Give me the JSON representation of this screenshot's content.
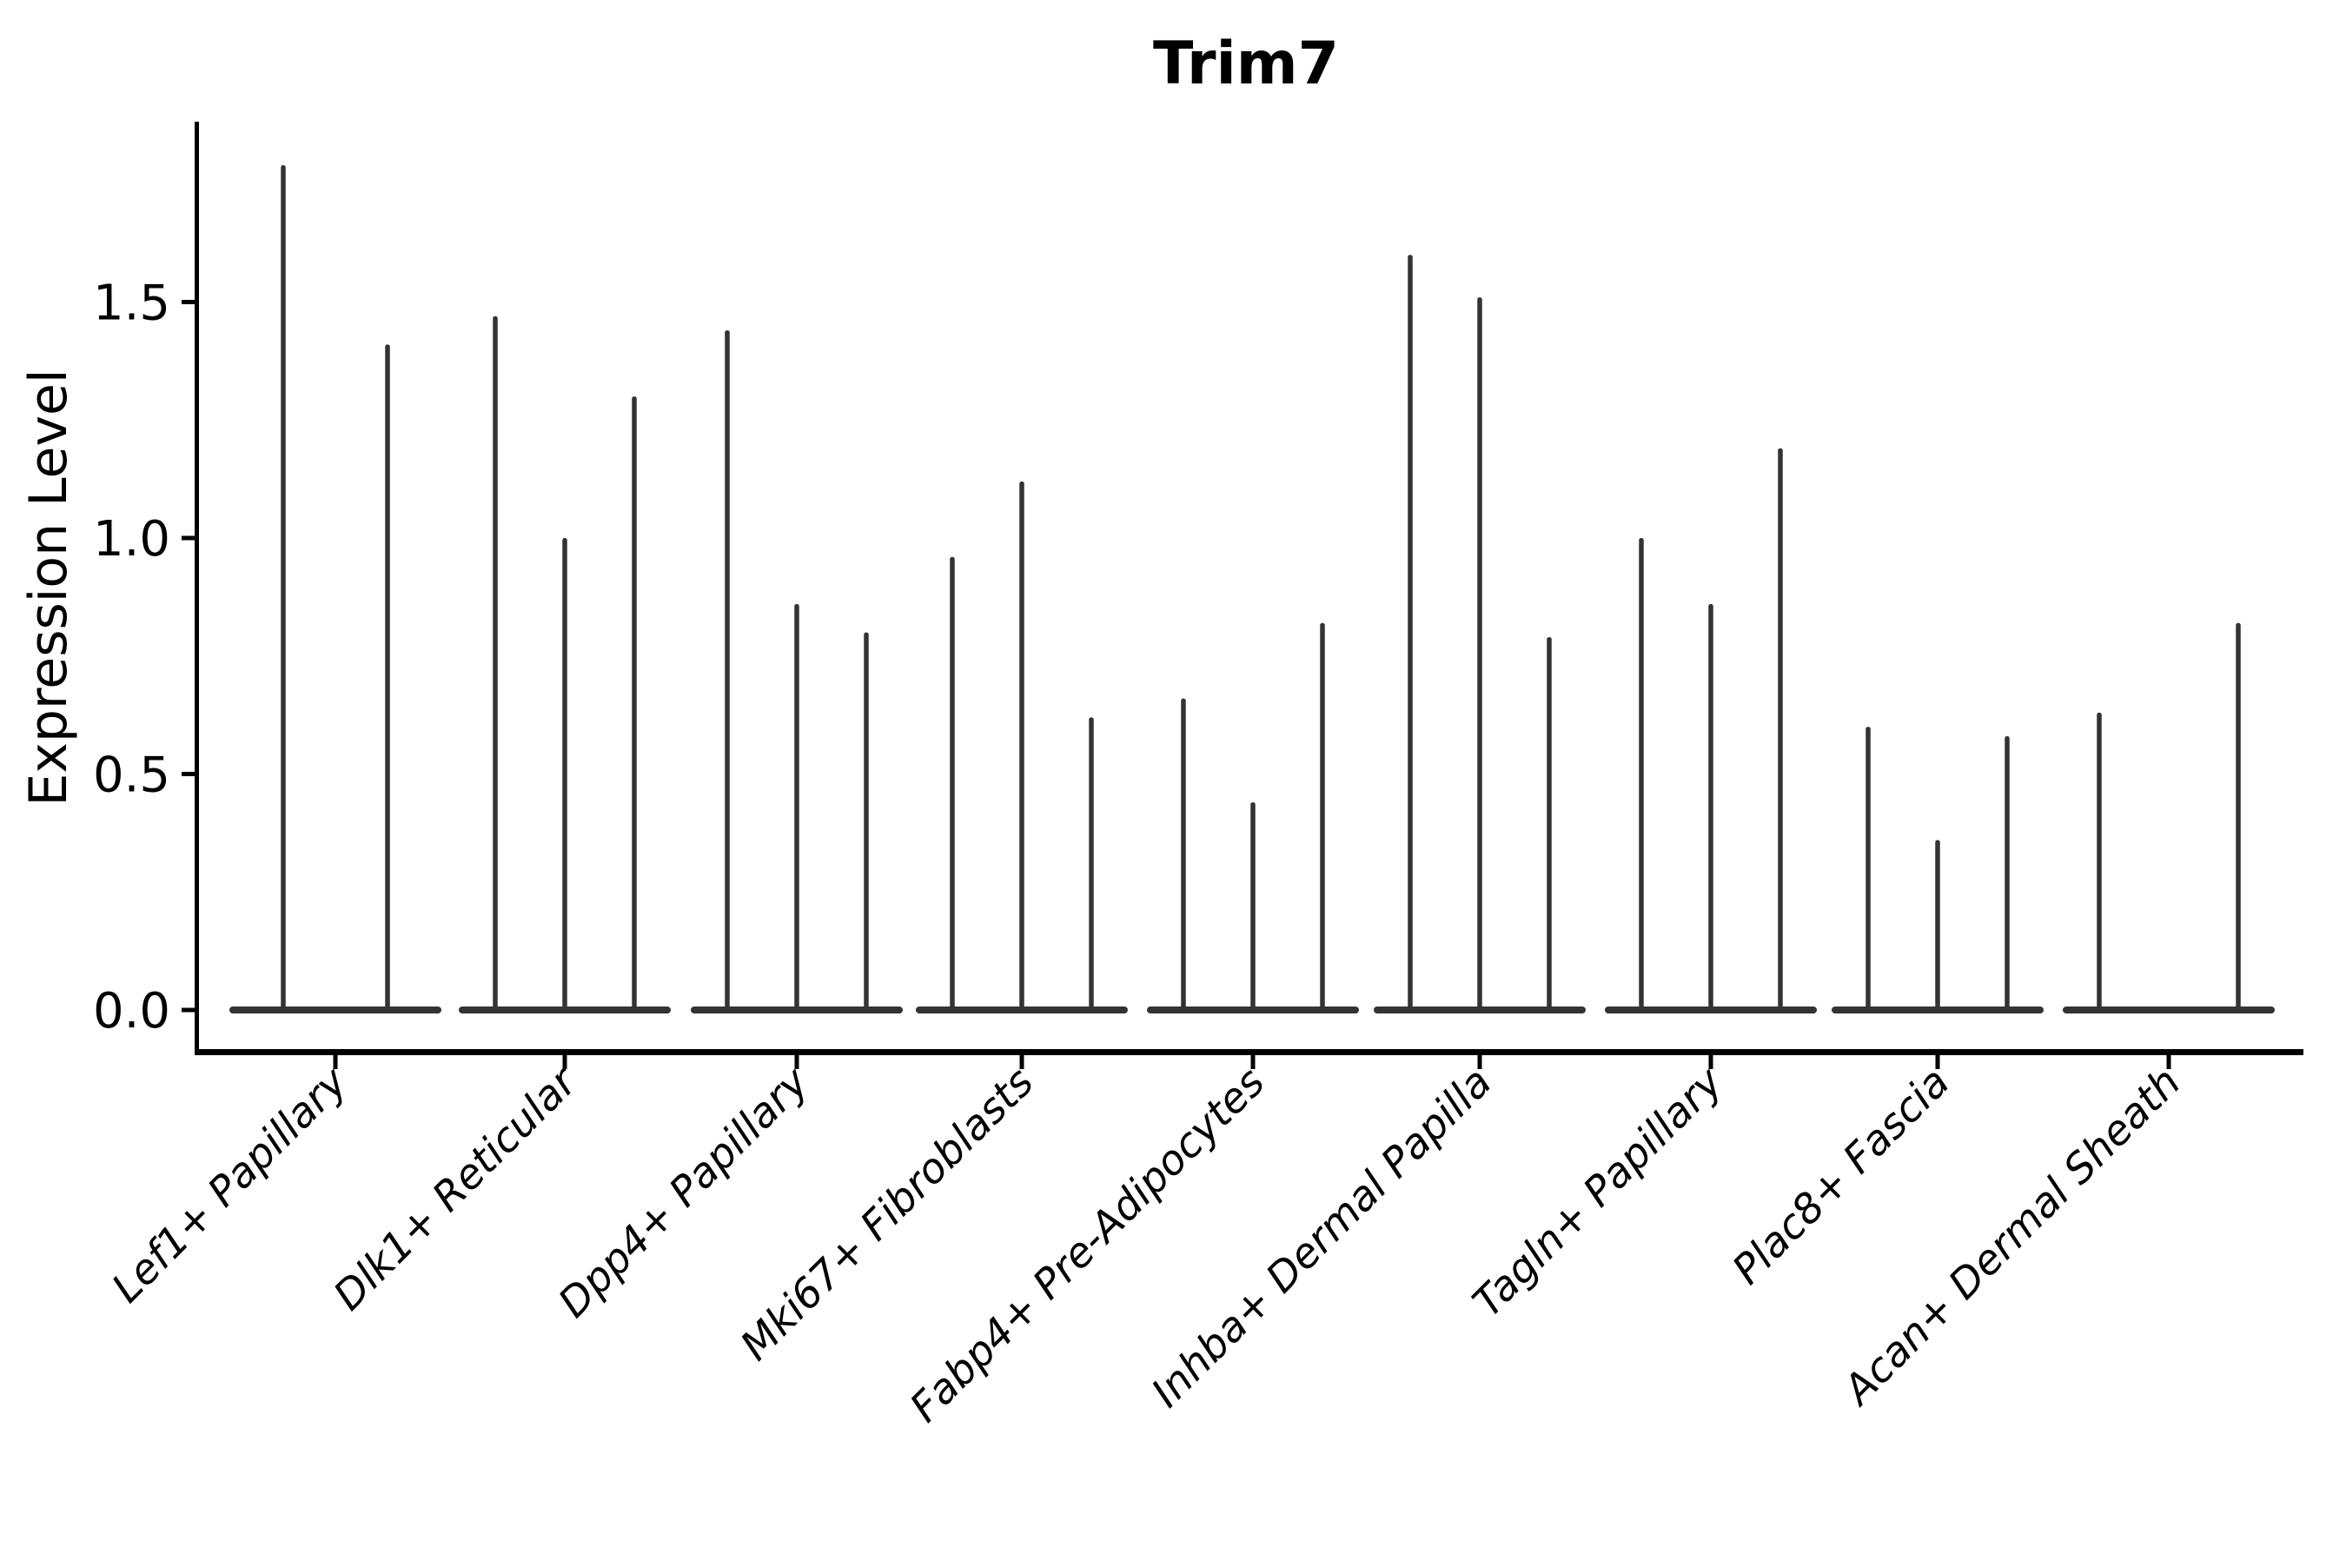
{
  "figure": {
    "background_color": "#ffffff",
    "violin_color": "#333333",
    "axis_color": "#000000",
    "text_color": "#000000"
  },
  "chart_data": {
    "type": "violin",
    "title": "Trim7",
    "xlabel": "",
    "ylabel": "Expression Level",
    "ylim": [
      -0.09,
      1.88
    ],
    "yticks": [
      0.0,
      0.5,
      1.0,
      1.5
    ],
    "ytick_labels": [
      "0.0",
      "0.5",
      "1.0",
      "1.5"
    ],
    "grid": false,
    "legend": "none",
    "description": "Violin plot of Trim7 expression; violins are collapsed flat at 0 with narrow spikes reaching each group's maximum expression value",
    "categories": [
      "Lef1+ Papillary",
      "Dlk1+ Reticular",
      "Dpp4+ Papillary",
      "Mki67+ Fibroblasts",
      "Fabp4+ Pre-Adipocytes",
      "Inhba+ Dermal Papilla",
      "Tagln+ Papillary",
      "Plac8+ Fascia",
      "Acan+ Dermal Sheath"
    ],
    "groups": [
      {
        "category": "Lef1+ Papillary",
        "violins": [
          {
            "dx": -60,
            "max": 1.79
          },
          {
            "dx": 60,
            "max": 1.41
          }
        ]
      },
      {
        "category": "Dlk1+ Reticular",
        "violins": [
          {
            "dx": -80,
            "max": 1.47
          },
          {
            "dx": 0,
            "max": 1.0
          },
          {
            "dx": 80,
            "max": 1.3
          }
        ]
      },
      {
        "category": "Dpp4+ Papillary",
        "violins": [
          {
            "dx": -80,
            "max": 1.44
          },
          {
            "dx": 0,
            "max": 0.86
          },
          {
            "dx": 80,
            "max": 0.8
          }
        ]
      },
      {
        "category": "Mki67+ Fibroblasts",
        "violins": [
          {
            "dx": -80,
            "max": 0.96
          },
          {
            "dx": 0,
            "max": 1.12
          },
          {
            "dx": 80,
            "max": 0.62
          }
        ]
      },
      {
        "category": "Fabp4+ Pre-Adipocytes",
        "violins": [
          {
            "dx": -80,
            "max": 0.66
          },
          {
            "dx": 0,
            "max": 0.44
          },
          {
            "dx": 80,
            "max": 0.82
          }
        ]
      },
      {
        "category": "Inhba+ Dermal Papilla",
        "violins": [
          {
            "dx": -80,
            "max": 1.6
          },
          {
            "dx": 0,
            "max": 1.51
          },
          {
            "dx": 80,
            "max": 0.79
          }
        ]
      },
      {
        "category": "Tagln+ Papillary",
        "violins": [
          {
            "dx": -80,
            "max": 1.0
          },
          {
            "dx": 0,
            "max": 0.86
          },
          {
            "dx": 80,
            "max": 1.19
          }
        ]
      },
      {
        "category": "Plac8+ Fascia",
        "violins": [
          {
            "dx": -80,
            "max": 0.6
          },
          {
            "dx": 0,
            "max": 0.36
          },
          {
            "dx": 80,
            "max": 0.58
          }
        ]
      },
      {
        "category": "Acan+ Dermal Sheath",
        "violins": [
          {
            "dx": -80,
            "max": 0.63
          },
          {
            "dx": 80,
            "max": 0.82
          }
        ]
      }
    ]
  }
}
